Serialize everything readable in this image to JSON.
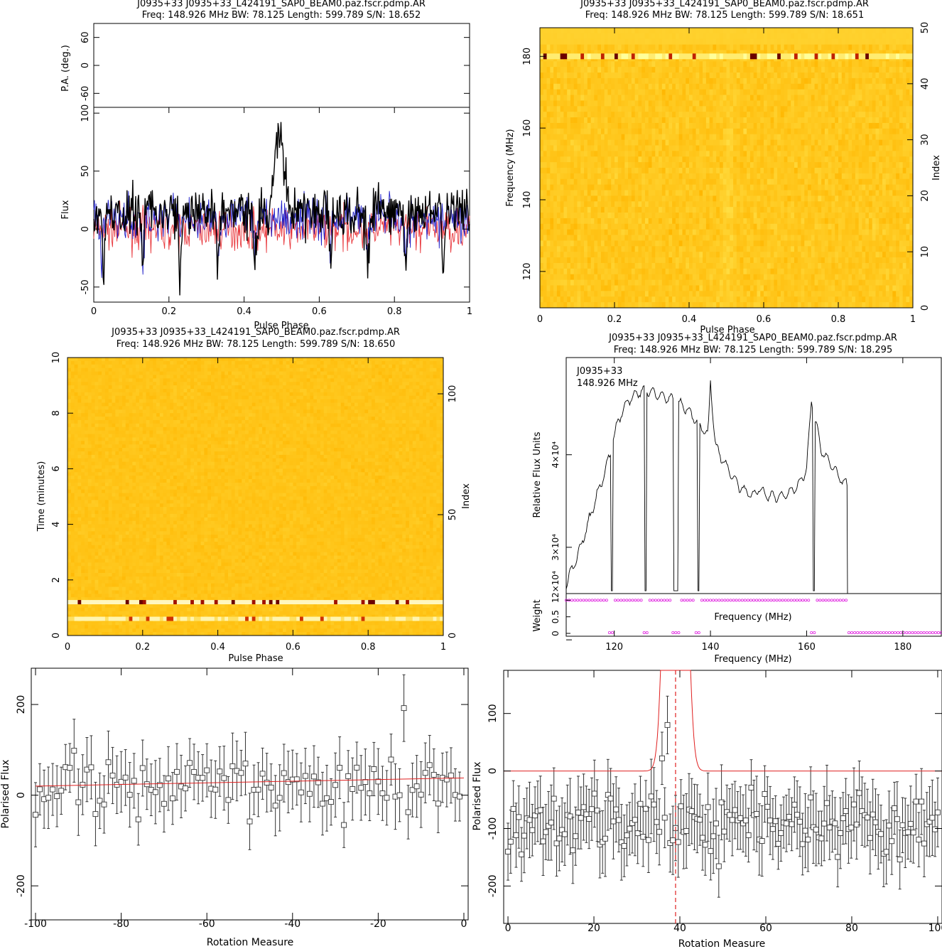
{
  "colors": {
    "black": "#000000",
    "red": "#e8353a",
    "blue": "#2020c8",
    "magenta": "#e020e0",
    "yellow": "#ffd12e",
    "fit": "#e02020"
  },
  "chart_data": [
    {
      "id": "profile",
      "type": "line",
      "title": "J0935+33 J0935+33_L424191_SAP0_BEAM0.paz.fscr.pdmp.AR",
      "subtitle": "Freq: 148.926 MHz BW: 78.125 Length: 599.789 S/N: 18.652",
      "xlabel": "Pulse Phase",
      "ylabel": "Flux",
      "pa_ylabel": "P.A. (deg.)",
      "xlim": [
        0,
        1
      ],
      "ylim": [
        -63,
        105
      ],
      "pa_ylim": [
        -90,
        90
      ],
      "xticks": [
        "0",
        "0.2",
        "0.4",
        "0.6",
        "0.8",
        "1"
      ],
      "yticks": [
        "-50",
        "0",
        "50",
        "100"
      ],
      "pa_yticks": [
        "-60",
        "0",
        "60"
      ],
      "series": [
        {
          "color": "black",
          "baseline": 15,
          "noise": 15,
          "pulse_center": 0.495,
          "pulse_width": 0.012,
          "pulse_height": 75,
          "dips": [
            0.025,
            0.13,
            0.23,
            0.33,
            0.43,
            0.63,
            0.73,
            0.83,
            0.93
          ],
          "dip_depth": -55
        },
        {
          "color": "blue",
          "baseline": 10,
          "noise": 14,
          "dips": [
            0.02,
            0.13,
            0.33,
            0.43,
            0.63,
            0.73,
            0.83
          ],
          "dip_depth": -35
        },
        {
          "color": "red",
          "baseline": 0,
          "noise": 12
        }
      ]
    },
    {
      "id": "freq-phase",
      "type": "heatmap",
      "title": "J0935+33 J0935+33_L424191_SAP0_BEAM0.paz.fscr.pdmp.AR",
      "subtitle": "Freq: 148.926 MHz BW: 78.125 Length: 599.789 S/N: 18.651",
      "xlabel": "Pulse Phase",
      "ylabel": "Frequency (MHz)",
      "y2label": "Index",
      "xlim": [
        0,
        1
      ],
      "ylim": [
        109.86,
        187.99
      ],
      "y2lim": [
        0,
        50
      ],
      "xticks": [
        "0",
        "0.2",
        "0.4",
        "0.6",
        "0.8",
        "1"
      ],
      "yticks": [
        "120",
        "140",
        "160",
        "180"
      ],
      "y2ticks": [
        "0",
        "10",
        "20",
        "30",
        "40",
        "50"
      ],
      "bright_band_mhz": 180,
      "pulse_phase": 0.5
    },
    {
      "id": "time-phase",
      "type": "heatmap",
      "title": "J0935+33 J0935+33_L424191_SAP0_BEAM0.paz.fscr.pdmp.AR",
      "subtitle": "Freq: 148.926 MHz BW: 78.125 Length: 599.789 S/N: 18.650",
      "xlabel": "Pulse Phase",
      "ylabel": "Time (minutes)",
      "y2label": "Index",
      "xlim": [
        0,
        1
      ],
      "ylim": [
        0,
        10
      ],
      "y2lim": [
        0,
        115
      ],
      "xticks": [
        "0",
        "0.2",
        "0.4",
        "0.6",
        "0.8",
        "1"
      ],
      "yticks": [
        "0",
        "2",
        "4",
        "6",
        "8",
        "10"
      ],
      "y2ticks": [
        "0",
        "50",
        "100"
      ],
      "bright_rows_min": [
        1.2,
        0.6
      ]
    },
    {
      "id": "bandpass",
      "type": "line",
      "title": "J0935+33 J0935+33_L424191_SAP0_BEAM0.paz.fscr.pdmp.AR",
      "subtitle": "Freq: 148.926 MHz BW: 78.125 Length: 599.789 S/N: 18.295",
      "annotation": [
        "J0935+33",
        "148.926 MHz"
      ],
      "xlabel": "Frequency (MHz)",
      "ylabel": "Relative Flux Units",
      "weight_ylabel": "Weight",
      "weight_xlabel": "Frequency (MHz)",
      "xlim": [
        110,
        188
      ],
      "ylim": [
        25000,
        50500
      ],
      "xticks": [
        "120",
        "140",
        "160",
        "180"
      ],
      "yticks": [
        "2×10⁴",
        "3×10⁴",
        "4×10⁴"
      ],
      "weight_yticks": [
        "0",
        "0.5",
        "1"
      ],
      "x": [
        110,
        113,
        116,
        118,
        119.5,
        121,
        123,
        126,
        129,
        132,
        135,
        138,
        139.5,
        140,
        141,
        143,
        146,
        149,
        150,
        152,
        155,
        158,
        160,
        161,
        163,
        165,
        167,
        168.5
      ],
      "y": [
        26000,
        30000,
        35000,
        38000,
        41000,
        44000,
        46000,
        47000,
        46500,
        46000,
        45000,
        43000,
        42000,
        48000,
        41000,
        39000,
        36500,
        35500,
        36500,
        35500,
        35500,
        36500,
        38500,
        46000,
        40500,
        39000,
        37500,
        36500
      ],
      "spikes": [
        126.5,
        132.5,
        133,
        137.5,
        119.5,
        161.5
      ],
      "zero_weight_from": 168.5
    },
    {
      "id": "rm-left",
      "type": "scatter",
      "xlabel": "Rotation Measure",
      "ylabel": "Polarised Flux",
      "xlim": [
        -101,
        1
      ],
      "ylim": [
        -275,
        280
      ],
      "xticks": [
        "-100",
        "-80",
        "-60",
        "-40",
        "-20",
        "0"
      ],
      "yticks": [
        "-200",
        "0",
        "200"
      ],
      "x_start": -100,
      "x_end": -1,
      "count": 100,
      "mean": 20,
      "scatter": 55,
      "error": 62,
      "fit": [
        [
          -100,
          20
        ],
        [
          0,
          38
        ]
      ],
      "outlier": [
        -14,
        192
      ]
    },
    {
      "id": "rm-right",
      "type": "scatter",
      "xlabel": "Rotation Measure",
      "ylabel": "Polarised Flux",
      "xlim": [
        -1,
        101
      ],
      "ylim": [
        -265,
        175
      ],
      "xticks": [
        "0",
        "20",
        "40",
        "60",
        "80",
        "100"
      ],
      "yticks": [
        "-200",
        "-100",
        "0",
        "100"
      ],
      "x_start": 0,
      "x_end": 100,
      "count": 160,
      "mean": -95,
      "scatter": 45,
      "error": 55,
      "fit_baseline": 0,
      "peak_rm": 39,
      "peak_points": [
        [
          37,
          80
        ],
        [
          36,
          22
        ]
      ]
    }
  ]
}
